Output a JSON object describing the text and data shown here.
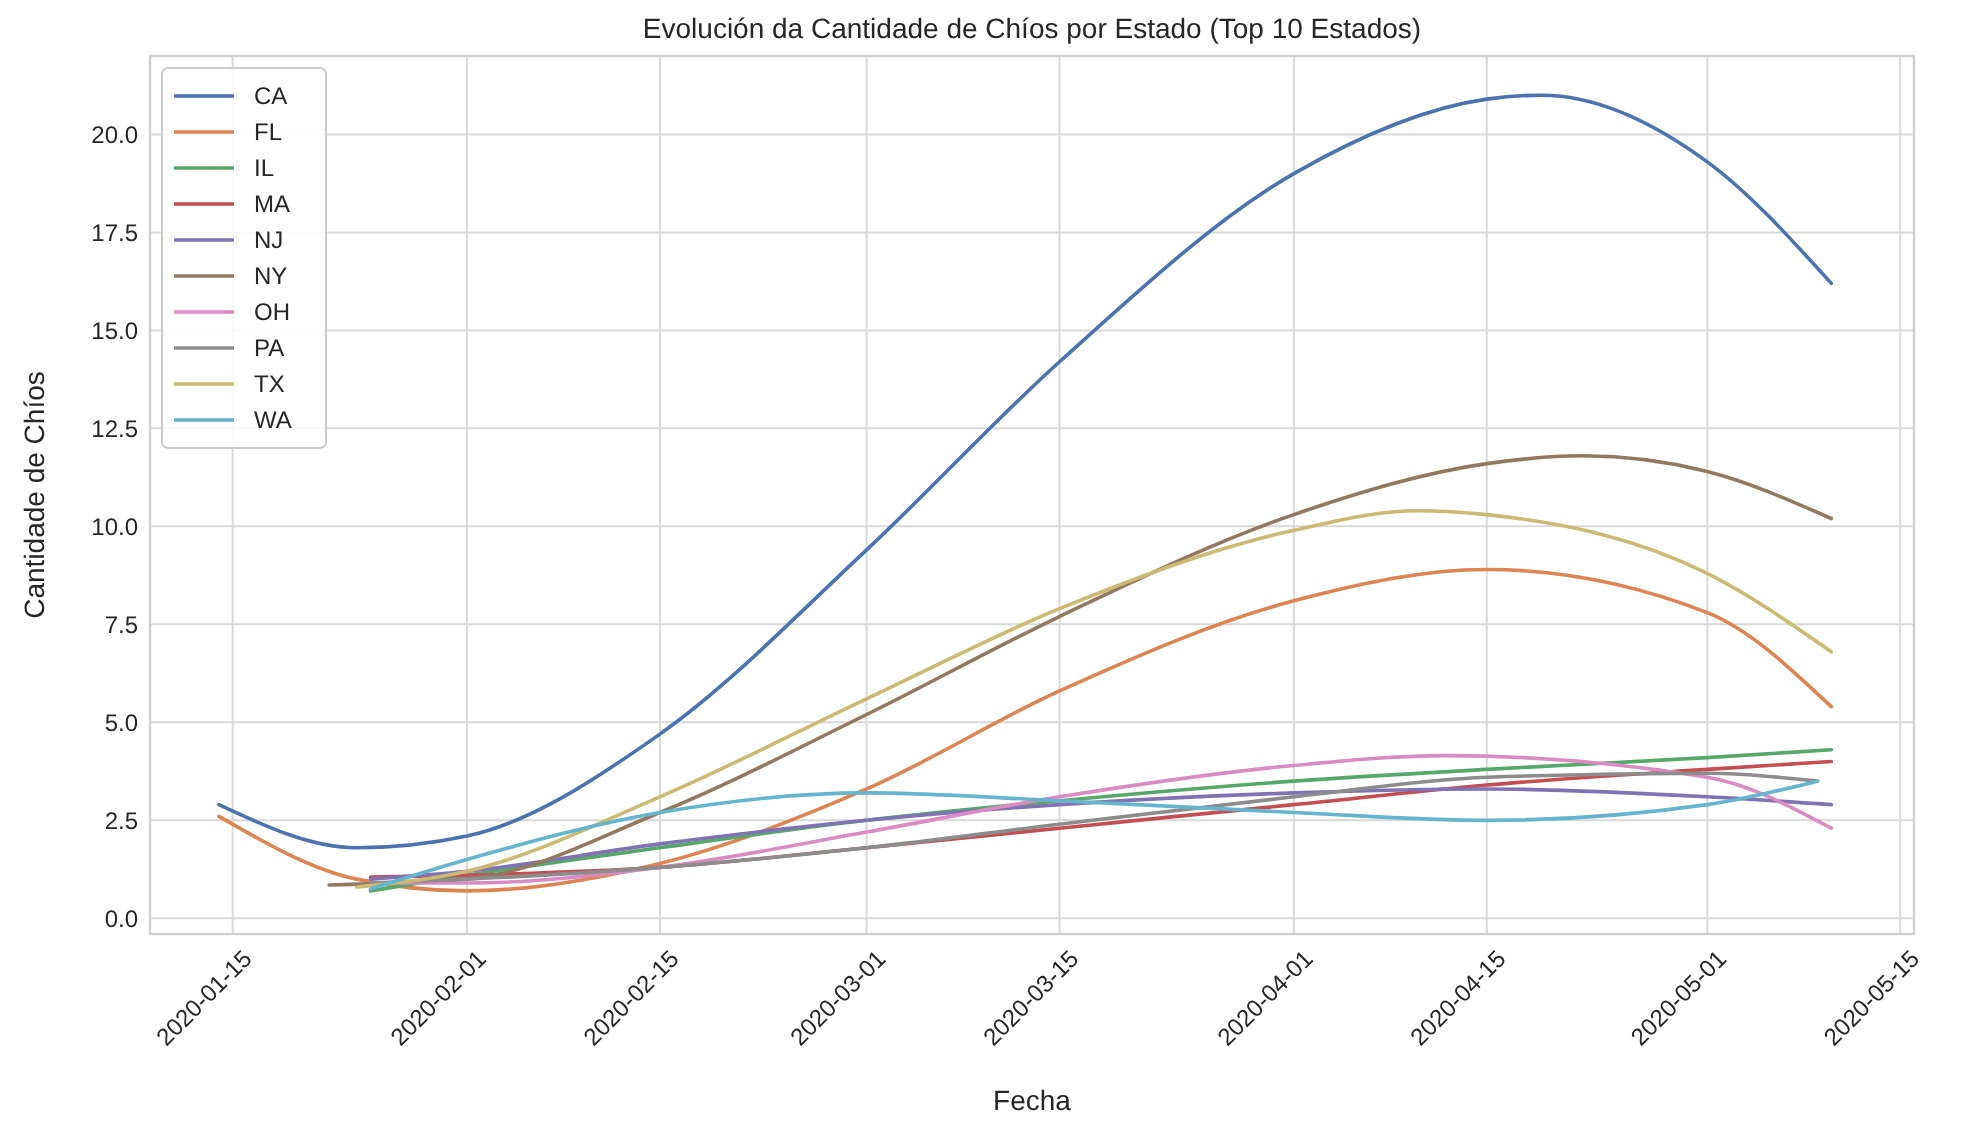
{
  "chart_data": {
    "type": "line",
    "title": "Evolución da Cantidade de Chíos por Estado (Top 10 Estados)",
    "xlabel": "Fecha",
    "ylabel": "Cantidade de Chíos",
    "xlim": [
      "2020-01-09",
      "2020-05-16"
    ],
    "xticks": [
      "2020-01-15",
      "2020-02-01",
      "2020-02-15",
      "2020-03-01",
      "2020-03-15",
      "2020-04-01",
      "2020-04-15",
      "2020-05-01",
      "2020-05-15"
    ],
    "ylim": [
      -0.4,
      22
    ],
    "yticks": [
      {
        "value": 0,
        "label": "0.0"
      },
      {
        "value": 2.5,
        "label": "2.5"
      },
      {
        "value": 5,
        "label": "5.0"
      },
      {
        "value": 7.5,
        "label": "7.5"
      },
      {
        "value": 10,
        "label": "10.0"
      },
      {
        "value": 12.5,
        "label": "12.5"
      },
      {
        "value": 15,
        "label": "15.0"
      },
      {
        "value": 17.5,
        "label": "17.5"
      },
      {
        "value": 20,
        "label": "20.0"
      }
    ],
    "grid": true,
    "legend": "top left",
    "line_style": "solid",
    "series": [
      {
        "name": "CA",
        "color": "#4c72b0",
        "x": [
          "2020-01-14",
          "2020-01-24",
          "2020-02-01",
          "2020-02-15",
          "2020-03-01",
          "2020-03-15",
          "2020-04-01",
          "2020-04-15",
          "2020-04-19",
          "2020-05-01",
          "2020-05-10"
        ],
        "values": [
          2.9,
          1.8,
          2.1,
          4.7,
          9.4,
          14.2,
          19.0,
          20.9,
          21.0,
          19.3,
          16.2
        ]
      },
      {
        "name": "FL",
        "color": "#dd8452",
        "x": [
          "2020-01-14",
          "2020-01-24",
          "2020-02-01",
          "2020-02-15",
          "2020-03-01",
          "2020-03-15",
          "2020-04-01",
          "2020-04-15",
          "2020-05-01",
          "2020-05-10"
        ],
        "values": [
          2.6,
          1.0,
          0.7,
          1.4,
          3.3,
          5.8,
          8.1,
          8.9,
          7.8,
          5.4
        ]
      },
      {
        "name": "IL",
        "color": "#55a868",
        "x": [
          "2020-01-25",
          "2020-02-01",
          "2020-02-15",
          "2020-03-01",
          "2020-03-15",
          "2020-04-01",
          "2020-04-15",
          "2020-05-01",
          "2020-05-10"
        ],
        "values": [
          0.7,
          1.1,
          1.8,
          2.5,
          3.0,
          3.5,
          3.8,
          4.1,
          4.3
        ]
      },
      {
        "name": "MA",
        "color": "#c44e52",
        "x": [
          "2020-01-25",
          "2020-02-01",
          "2020-02-15",
          "2020-03-01",
          "2020-03-15",
          "2020-04-01",
          "2020-04-15",
          "2020-05-01",
          "2020-05-10"
        ],
        "values": [
          1.05,
          1.1,
          1.3,
          1.8,
          2.3,
          2.9,
          3.4,
          3.8,
          4.0
        ]
      },
      {
        "name": "NJ",
        "color": "#8172b3",
        "x": [
          "2020-01-25",
          "2020-02-01",
          "2020-02-15",
          "2020-03-01",
          "2020-03-15",
          "2020-04-01",
          "2020-04-15",
          "2020-05-01",
          "2020-05-10"
        ],
        "values": [
          1.0,
          1.2,
          1.9,
          2.5,
          2.9,
          3.2,
          3.3,
          3.1,
          2.9
        ]
      },
      {
        "name": "NY",
        "color": "#937860",
        "x": [
          "2020-01-22",
          "2020-02-01",
          "2020-02-15",
          "2020-03-01",
          "2020-03-15",
          "2020-04-01",
          "2020-04-15",
          "2020-04-22",
          "2020-05-01",
          "2020-05-10"
        ],
        "values": [
          0.85,
          1.0,
          2.7,
          5.2,
          7.7,
          10.3,
          11.6,
          11.8,
          11.4,
          10.2
        ]
      },
      {
        "name": "OH",
        "color": "#da8bc3",
        "x": [
          "2020-01-25",
          "2020-02-01",
          "2020-02-15",
          "2020-03-01",
          "2020-03-15",
          "2020-04-01",
          "2020-04-12",
          "2020-05-01",
          "2020-05-10"
        ],
        "values": [
          0.9,
          0.9,
          1.3,
          2.2,
          3.1,
          3.9,
          4.15,
          3.6,
          2.3
        ]
      },
      {
        "name": "PA",
        "color": "#8c8c8c",
        "x": [
          "2020-01-25",
          "2020-02-01",
          "2020-02-15",
          "2020-03-01",
          "2020-03-15",
          "2020-04-01",
          "2020-04-15",
          "2020-05-01",
          "2020-05-09"
        ],
        "values": [
          0.9,
          1.0,
          1.3,
          1.8,
          2.4,
          3.1,
          3.6,
          3.7,
          3.5
        ]
      },
      {
        "name": "TX",
        "color": "#ccb974",
        "x": [
          "2020-01-24",
          "2020-02-01",
          "2020-02-15",
          "2020-03-01",
          "2020-03-15",
          "2020-04-01",
          "2020-04-10",
          "2020-04-15",
          "2020-05-01",
          "2020-05-10"
        ],
        "values": [
          0.8,
          1.2,
          3.1,
          5.6,
          7.9,
          9.9,
          10.4,
          10.3,
          8.8,
          6.8
        ]
      },
      {
        "name": "WA",
        "color": "#64b5cd",
        "x": [
          "2020-01-25",
          "2020-02-01",
          "2020-02-15",
          "2020-03-01",
          "2020-03-15",
          "2020-04-01",
          "2020-04-15",
          "2020-05-01",
          "2020-05-09"
        ],
        "values": [
          0.75,
          1.5,
          2.7,
          3.2,
          3.0,
          2.7,
          2.5,
          2.9,
          3.5
        ]
      }
    ]
  }
}
